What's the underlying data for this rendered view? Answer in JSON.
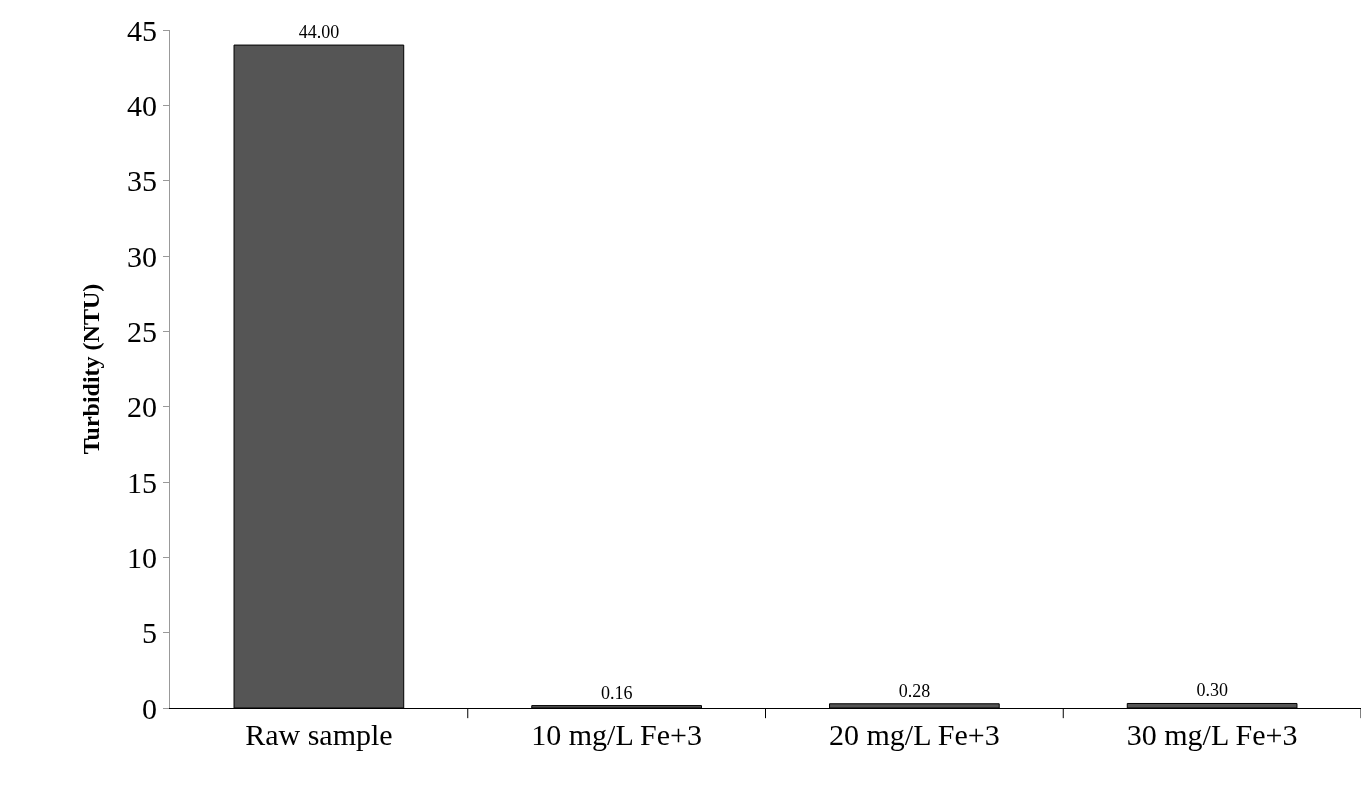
{
  "chart_data": {
    "type": "bar",
    "ylabel": "Turbidity (NTU)",
    "categories": [
      "Raw sample",
      "10 mg/L Fe+3",
      "20 mg/L Fe+3",
      "30 mg/L Fe+3"
    ],
    "values": [
      44.0,
      0.16,
      0.28,
      0.3
    ],
    "value_labels": [
      "44.00",
      "0.16",
      "0.28",
      "0.30"
    ],
    "color": "#555555",
    "ylim": [
      0,
      45
    ],
    "yticks": [
      0,
      5,
      10,
      15,
      20,
      25,
      30,
      35,
      40,
      45
    ],
    "grid": false,
    "legend": false
  }
}
